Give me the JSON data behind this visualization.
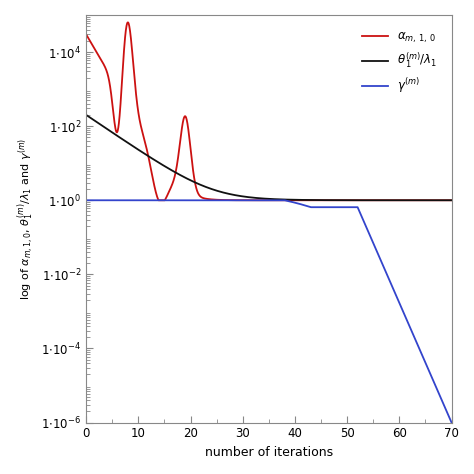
{
  "xlabel": "number of iterations",
  "ylabel": "log of $\\alpha_{m,1,0}$, $\\theta^{(m)}_1/\\lambda_1$ and $\\gamma^{(m)}$",
  "xlim": [
    0,
    70
  ],
  "ylim_log": [
    -6,
    5
  ],
  "legend": [
    {
      "label": "$\\alpha_{m,\\,1,\\,0}$",
      "color": "#cc1111",
      "lw": 1.3
    },
    {
      "label": "$\\theta^{(m)}_{\\,1}/\\lambda_1$",
      "color": "#111111",
      "lw": 1.3
    },
    {
      "label": "$\\gamma^{(m)}$",
      "color": "#3344cc",
      "lw": 1.3
    }
  ],
  "yticks_log": [
    -6,
    -4,
    -2,
    0,
    2,
    4
  ],
  "ytick_labels": [
    "1$\\cdot$10$^{-6}$",
    "1$\\cdot$10$^{-4}$",
    "1$\\cdot$10$^{-2}$",
    "1$\\cdot$10$^{0}$",
    "1$\\cdot$10$^{2}$",
    "1$\\cdot$10$^{4}$"
  ],
  "xticks": [
    0,
    10,
    20,
    30,
    40,
    50,
    60,
    70
  ],
  "background_color": "#ffffff"
}
